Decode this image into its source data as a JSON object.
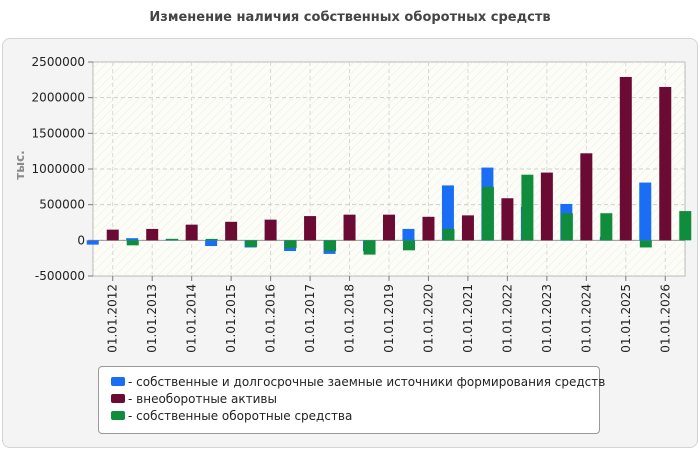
{
  "chart_data": {
    "type": "bar",
    "title": "Изменение наличия собственных оборотных средств",
    "ylabel": "тыс.",
    "xlabel": "",
    "ylim": [
      -500000,
      2500000
    ],
    "yticks": [
      2500000,
      2000000,
      1500000,
      1000000,
      500000,
      0,
      -500000
    ],
    "grid": true,
    "legend_position": "bottom",
    "categories": [
      "01.01.2012",
      "01.01.2013",
      "01.01.2014",
      "01.01.2015",
      "01.01.2016",
      "01.01.2017",
      "01.01.2018",
      "01.01.2019",
      "01.01.2020",
      "01.01.2021",
      "01.01.2022",
      "01.01.2023",
      "01.01.2024",
      "01.01.2025",
      "01.01.2026"
    ],
    "series": [
      {
        "name": "собственные и долгосрочные заемные источники формирования средств",
        "color": "#1a6ef5",
        "values": [
          -60000,
          30000,
          20000,
          -80000,
          -100000,
          -150000,
          -190000,
          -150000,
          160000,
          770000,
          1020000,
          470000,
          510000,
          50000,
          810000
        ]
      },
      {
        "name": "внеоборотные активы",
        "color": "#6b0a33",
        "values": [
          150000,
          160000,
          220000,
          260000,
          290000,
          340000,
          360000,
          360000,
          330000,
          350000,
          590000,
          950000,
          1220000,
          2290000,
          2150000
        ]
      },
      {
        "name": "собственные оборотные средства",
        "color": "#0f8c3c",
        "values": [
          -70000,
          20000,
          20000,
          -90000,
          -110000,
          -150000,
          -200000,
          -140000,
          160000,
          750000,
          920000,
          380000,
          380000,
          -100000,
          410000
        ]
      }
    ]
  }
}
